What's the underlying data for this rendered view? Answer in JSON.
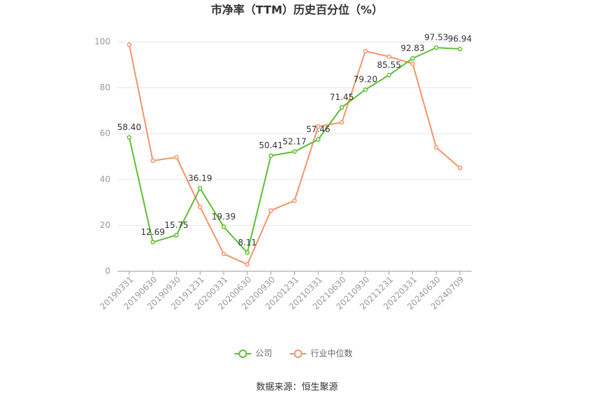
{
  "chart_data": {
    "type": "line",
    "title": "市净率（TTM）历史百分位（%）",
    "categories": [
      "20190331",
      "20190630",
      "20190930",
      "20191231",
      "20200331",
      "20200630",
      "20200930",
      "20201231",
      "20210331",
      "20210630",
      "20210930",
      "20211231",
      "20220331",
      "20240630",
      "20240709"
    ],
    "series": [
      {
        "name": "公司",
        "color": "#5dbf31",
        "values": [
          58.4,
          12.69,
          15.75,
          36.19,
          19.39,
          8.11,
          50.41,
          52.17,
          57.46,
          71.45,
          79.2,
          85.55,
          92.83,
          97.53,
          96.94
        ],
        "value_labels": [
          "58.40",
          "12.69",
          "15.75",
          "36.19",
          "19.39",
          "8.11",
          "50.41",
          "52.17",
          "57.46",
          "71.45",
          "79.20",
          "85.55",
          "92.83",
          "97.53",
          "96.94"
        ]
      },
      {
        "name": "行业中位数",
        "color": "#f5936a",
        "values": [
          98.8,
          48.2,
          49.7,
          28.0,
          7.6,
          3.0,
          26.5,
          30.8,
          63.1,
          64.9,
          96.0,
          93.6,
          90.5,
          54.0,
          45.1
        ]
      }
    ],
    "ylim": [
      0,
      100
    ],
    "yticks": [
      0,
      20,
      40,
      60,
      80,
      100
    ],
    "grid": true,
    "source": "数据来源：恒生聚源"
  }
}
